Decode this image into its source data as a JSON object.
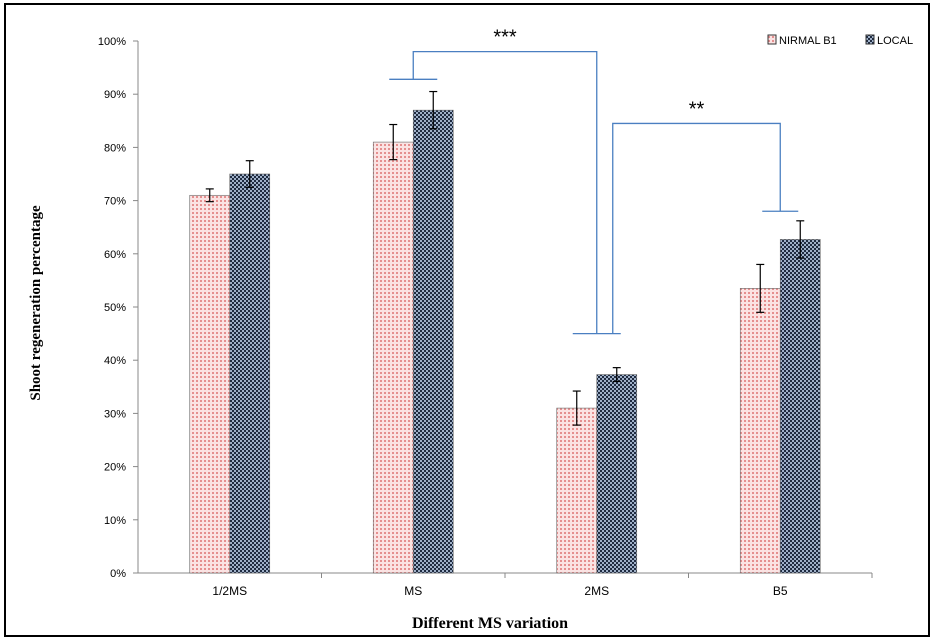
{
  "chart_data": {
    "type": "bar",
    "categories": [
      "1/2MS",
      "MS",
      "2MS",
      "B5"
    ],
    "series": [
      {
        "name": "NIRMAL B1",
        "values": [
          71,
          81,
          31,
          53.5
        ],
        "errors": [
          1.2,
          3.3,
          3.2,
          4.5
        ],
        "color": "#f2b8b8"
      },
      {
        "name": "LOCAL",
        "values": [
          75,
          87,
          37.3,
          62.7
        ],
        "errors": [
          2.5,
          3.5,
          1.3,
          3.5
        ],
        "color": "#3a4d68"
      }
    ],
    "ylim": [
      0,
      1.0
    ],
    "yticks": [
      "0%",
      "10%",
      "20%",
      "30%",
      "40%",
      "50%",
      "60%",
      "70%",
      "80%",
      "90%",
      "100%"
    ],
    "xlabel": "Different MS variation",
    "ylabel": "Shoot regeneration percentage",
    "legend_position": "top-right",
    "grid": false,
    "annotations": [
      {
        "text": "***",
        "between": [
          "MS",
          "2MS"
        ]
      },
      {
        "text": "**",
        "between": [
          "2MS",
          "B5"
        ]
      }
    ]
  }
}
